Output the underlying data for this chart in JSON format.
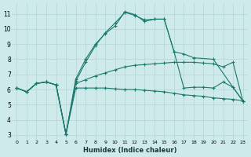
{
  "xlabel": "Humidex (Indice chaleur)",
  "bg_color": "#ceeaea",
  "line_color": "#1a7a6e",
  "grid_color": "#b8d8d8",
  "xlim": [
    -0.5,
    23.5
  ],
  "ylim": [
    2.7,
    11.7
  ],
  "xticks": [
    0,
    1,
    2,
    3,
    4,
    5,
    6,
    7,
    8,
    9,
    10,
    11,
    12,
    13,
    14,
    15,
    16,
    17,
    18,
    19,
    20,
    21,
    22,
    23
  ],
  "yticks": [
    3,
    4,
    5,
    6,
    7,
    8,
    9,
    10,
    11
  ],
  "line1_x": [
    0,
    1,
    2,
    3,
    4,
    5,
    6,
    7,
    8,
    9,
    10,
    11,
    12,
    13,
    14,
    15,
    16,
    17,
    18,
    19,
    20,
    21,
    22,
    23
  ],
  "line1_y": [
    6.1,
    5.85,
    6.4,
    6.5,
    6.3,
    3.05,
    6.1,
    6.1,
    6.1,
    6.1,
    6.05,
    6.0,
    6.0,
    5.95,
    5.9,
    5.85,
    5.75,
    5.65,
    5.6,
    5.55,
    5.45,
    5.4,
    5.35,
    5.25
  ],
  "line2_x": [
    0,
    1,
    2,
    3,
    4,
    5,
    6,
    7,
    8,
    9,
    10,
    11,
    12,
    13,
    14,
    15,
    16,
    17,
    18,
    19,
    20,
    21,
    22,
    23
  ],
  "line2_y": [
    6.1,
    5.85,
    6.4,
    6.5,
    6.3,
    3.05,
    6.4,
    6.65,
    6.9,
    7.1,
    7.3,
    7.5,
    7.6,
    7.65,
    7.7,
    7.75,
    7.8,
    7.8,
    7.8,
    7.75,
    7.7,
    7.5,
    7.8,
    5.25
  ],
  "line3_x": [
    0,
    1,
    2,
    3,
    4,
    5,
    6,
    7,
    8,
    9,
    10,
    11,
    12,
    13,
    14,
    15,
    16,
    17,
    18,
    20,
    22,
    23
  ],
  "line3_y": [
    6.1,
    5.85,
    6.4,
    6.5,
    6.3,
    3.05,
    6.55,
    7.8,
    8.9,
    9.75,
    10.4,
    11.1,
    10.9,
    10.6,
    10.65,
    10.65,
    8.5,
    8.35,
    8.1,
    8.0,
    6.15,
    5.25
  ],
  "line4_x": [
    0,
    1,
    2,
    3,
    4,
    5,
    6,
    7,
    8,
    9,
    10,
    11,
    12,
    13,
    14,
    15,
    16,
    17,
    18,
    19,
    20,
    21,
    22,
    23
  ],
  "line4_y": [
    6.1,
    5.85,
    6.4,
    6.5,
    6.3,
    3.05,
    6.7,
    8.0,
    9.0,
    9.7,
    10.2,
    11.15,
    10.95,
    10.5,
    10.65,
    10.65,
    8.5,
    6.1,
    6.15,
    6.15,
    6.1,
    6.5,
    6.15,
    5.25
  ]
}
